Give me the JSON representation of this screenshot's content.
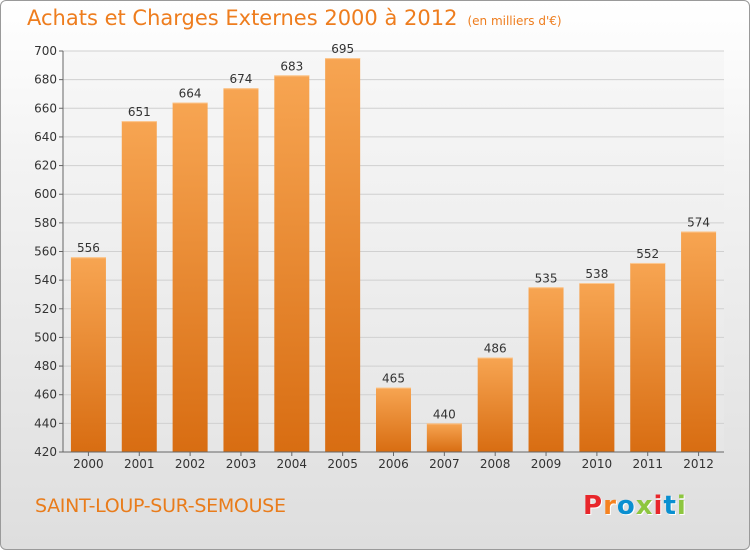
{
  "header": {
    "title": "Achats et Charges Externes 2000 à 2012",
    "subtitle": "(en milliers d'€)"
  },
  "footer": {
    "location": "SAINT-LOUP-SUR-SEMOUSE",
    "brand": "Proxiti"
  },
  "colors": {
    "title": "#ee7d1e",
    "bar_light": "#f7a552",
    "bar_dark": "#d86d12",
    "logo": [
      "#e8262b",
      "#f58220",
      "#0a8fd0",
      "#8dc63f",
      "#e8262b",
      "#0a8fd0",
      "#8dc63f"
    ]
  },
  "chart_data": {
    "type": "bar",
    "title": "Achats et Charges Externes 2000 à 2012",
    "subtitle": "(en milliers d'€)",
    "categories": [
      "2000",
      "2001",
      "2002",
      "2003",
      "2004",
      "2005",
      "2006",
      "2007",
      "2008",
      "2009",
      "2010",
      "2011",
      "2012"
    ],
    "values": [
      556,
      651,
      664,
      674,
      683,
      695,
      465,
      440,
      486,
      535,
      538,
      552,
      574
    ],
    "ylim": [
      420,
      700
    ],
    "yticks": [
      420,
      440,
      460,
      480,
      500,
      520,
      540,
      560,
      580,
      600,
      620,
      640,
      660,
      680,
      700
    ],
    "grid": true,
    "data_labels": true
  }
}
